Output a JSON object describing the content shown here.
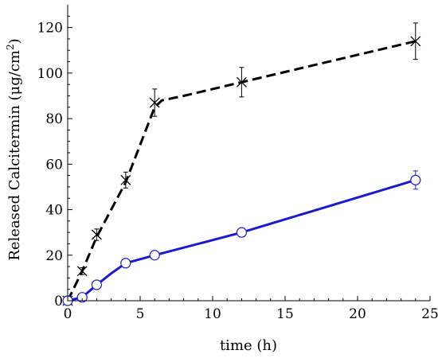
{
  "chart_data": {
    "type": "line",
    "title": "",
    "xlabel": "time (h)",
    "ylabel_main": "Released Calcitermin (μg/cm",
    "ylabel_sup": "2",
    "ylabel_end": ")",
    "xlim": [
      0,
      25
    ],
    "ylim": [
      0,
      130
    ],
    "x_ticks": [
      0,
      5,
      10,
      15,
      20,
      25
    ],
    "y_ticks": [
      0,
      20,
      40,
      60,
      80,
      100,
      120
    ],
    "grid": false,
    "legend": "none",
    "series": [
      {
        "marker": "x",
        "line_style": "dashed",
        "color": "#000000",
        "points": [
          {
            "x": 0,
            "y": 0,
            "err": 0
          },
          {
            "x": 1,
            "y": 13,
            "err": 1.5
          },
          {
            "x": 2,
            "y": 29,
            "err": 2.5
          },
          {
            "x": 4,
            "y": 53,
            "err": 3.5
          },
          {
            "x": 6,
            "y": 87,
            "err": 6
          },
          {
            "x": 12,
            "y": 96,
            "err": 6.5
          },
          {
            "x": 24,
            "y": 114,
            "err": 8
          }
        ],
        "line_path": [
          [
            0,
            0
          ],
          [
            1,
            13
          ],
          [
            2,
            28
          ],
          [
            4,
            52
          ],
          [
            6,
            85
          ],
          [
            6.5,
            88
          ],
          [
            8,
            90
          ],
          [
            12,
            96
          ],
          [
            24,
            114
          ]
        ]
      },
      {
        "marker": "circle",
        "line_style": "solid",
        "color": "#1a1ad0",
        "points": [
          {
            "x": 0,
            "y": 0,
            "err": 0
          },
          {
            "x": 1,
            "y": 1.5,
            "err": 0.5
          },
          {
            "x": 2,
            "y": 7,
            "err": 1
          },
          {
            "x": 4,
            "y": 16.5,
            "err": 1.5
          },
          {
            "x": 6,
            "y": 20,
            "err": 1.2
          },
          {
            "x": 12,
            "y": 30,
            "err": 2
          },
          {
            "x": 24,
            "y": 53,
            "err": 4
          }
        ],
        "line_path": [
          [
            0,
            0
          ],
          [
            1,
            1.5
          ],
          [
            2,
            7
          ],
          [
            3,
            12
          ],
          [
            4,
            16.5
          ],
          [
            6,
            20
          ],
          [
            12,
            30
          ],
          [
            24,
            53
          ]
        ]
      }
    ]
  }
}
